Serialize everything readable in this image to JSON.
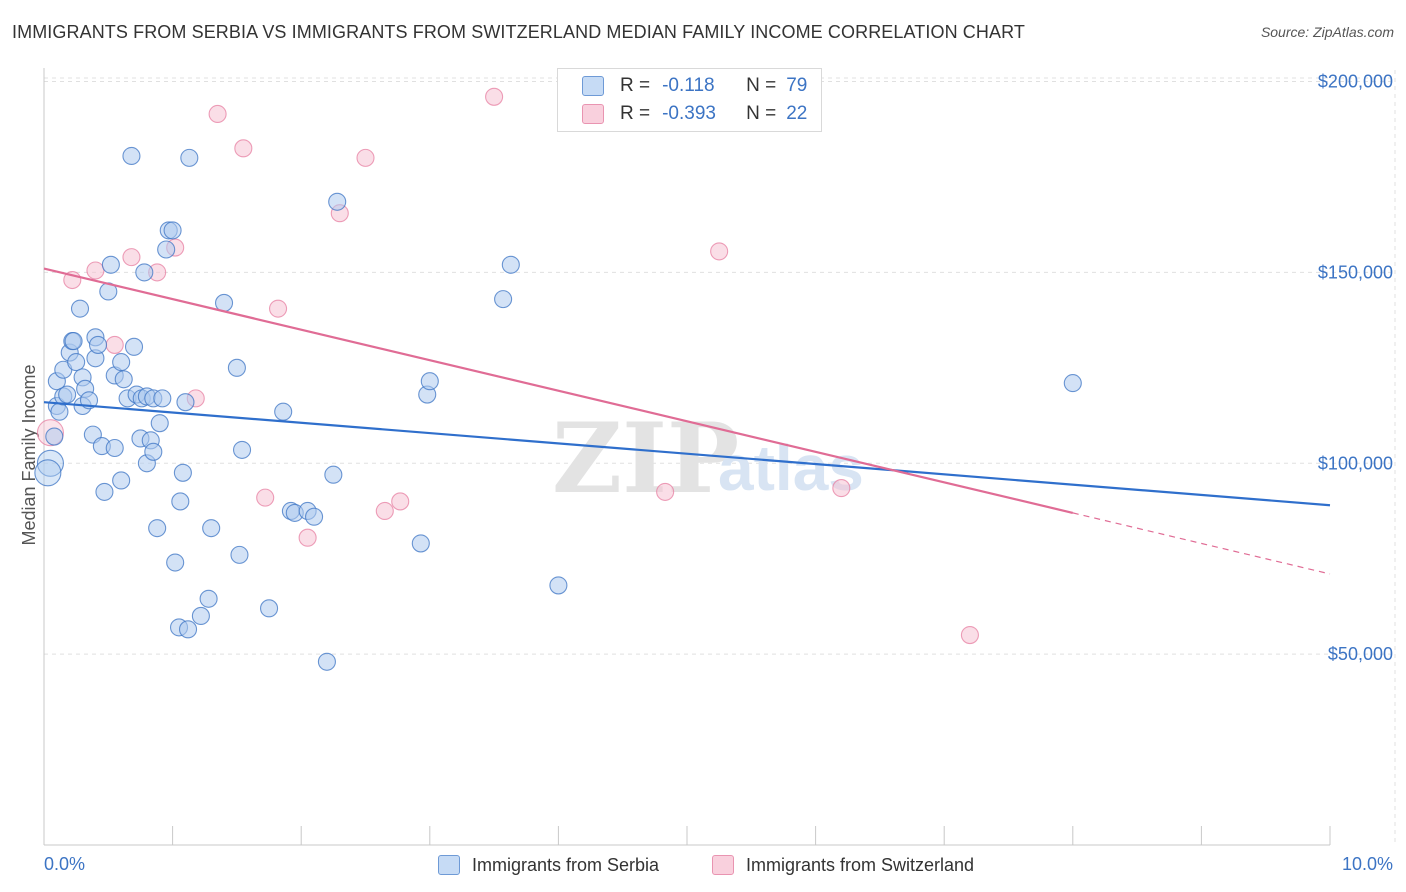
{
  "title": "IMMIGRANTS FROM SERBIA VS IMMIGRANTS FROM SWITZERLAND MEDIAN FAMILY INCOME CORRELATION CHART",
  "source": "Source: ZipAtlas.com",
  "watermark": {
    "part1": "ZIP",
    "part2": "atlas"
  },
  "legend": [
    {
      "r_label": "R =",
      "r_value": "-0.118",
      "n_label": "N =",
      "n_value": "79"
    },
    {
      "r_label": "R =",
      "r_value": "-0.393",
      "n_label": "N =",
      "n_value": "22"
    }
  ],
  "colors": {
    "serbia_fill": "#aecbef",
    "serbia_stroke": "#3c74c4",
    "serbia_line": "#2f6fcc",
    "switzerland_fill": "#f6c3d3",
    "switzerland_stroke": "#e77fa2",
    "switzerland_line": "#e06c95",
    "accent_text": "#3c74c4",
    "grid": "#e0e0e0"
  },
  "chart_data": {
    "type": "scatter",
    "title": "IMMIGRANTS FROM SERBIA VS IMMIGRANTS FROM SWITZERLAND MEDIAN FAMILY INCOME CORRELATION CHART",
    "xlabel": "",
    "ylabel": "Median Family Income",
    "xlim": [
      0,
      10
    ],
    "ylim": [
      0,
      210000
    ],
    "x_tick_labels": [
      "0.0%",
      "10.0%"
    ],
    "y_ticks": [
      {
        "value": 200000,
        "label": "$200,000"
      },
      {
        "value": 150000,
        "label": "$150,000"
      },
      {
        "value": 100000,
        "label": "$100,000"
      },
      {
        "value": 50000,
        "label": "$50,000"
      }
    ],
    "grid": true,
    "legend_position": "top-center",
    "series": [
      {
        "name": "Immigrants from Serbia",
        "r": -0.118,
        "n": 79,
        "trend": {
          "x": [
            0.0,
            10.0
          ],
          "y": [
            116000,
            89000
          ],
          "dashed_from": null
        },
        "points": [
          [
            0.05,
            100000
          ],
          [
            0.03,
            97500
          ],
          [
            0.08,
            107000
          ],
          [
            0.1,
            115000
          ],
          [
            0.12,
            113500
          ],
          [
            0.1,
            121500
          ],
          [
            0.15,
            117500
          ],
          [
            0.18,
            118000
          ],
          [
            0.15,
            124500
          ],
          [
            0.2,
            129000
          ],
          [
            0.22,
            132000
          ],
          [
            0.23,
            132000
          ],
          [
            0.25,
            126500
          ],
          [
            0.28,
            140500
          ],
          [
            0.3,
            122500
          ],
          [
            0.32,
            119500
          ],
          [
            0.3,
            115000
          ],
          [
            0.35,
            116500
          ],
          [
            0.38,
            107500
          ],
          [
            0.4,
            133000
          ],
          [
            0.4,
            127500
          ],
          [
            0.42,
            131000
          ],
          [
            0.45,
            104500
          ],
          [
            0.47,
            92500
          ],
          [
            0.5,
            145000
          ],
          [
            0.52,
            152000
          ],
          [
            0.55,
            104000
          ],
          [
            0.55,
            123000
          ],
          [
            0.6,
            126500
          ],
          [
            0.6,
            95500
          ],
          [
            0.62,
            122000
          ],
          [
            0.65,
            117000
          ],
          [
            0.68,
            180500
          ],
          [
            0.7,
            130500
          ],
          [
            0.72,
            118000
          ],
          [
            0.75,
            106500
          ],
          [
            0.76,
            117000
          ],
          [
            0.78,
            150000
          ],
          [
            0.8,
            117500
          ],
          [
            0.8,
            100000
          ],
          [
            0.83,
            106000
          ],
          [
            0.85,
            103000
          ],
          [
            0.85,
            117000
          ],
          [
            0.88,
            83000
          ],
          [
            0.9,
            110500
          ],
          [
            0.92,
            117000
          ],
          [
            0.95,
            156000
          ],
          [
            0.97,
            161000
          ],
          [
            1.0,
            161000
          ],
          [
            1.02,
            74000
          ],
          [
            1.05,
            57000
          ],
          [
            1.06,
            90000
          ],
          [
            1.08,
            97500
          ],
          [
            1.1,
            116000
          ],
          [
            1.12,
            56500
          ],
          [
            1.13,
            180000
          ],
          [
            1.22,
            60000
          ],
          [
            1.28,
            64500
          ],
          [
            1.3,
            83000
          ],
          [
            1.4,
            142000
          ],
          [
            1.5,
            125000
          ],
          [
            1.52,
            76000
          ],
          [
            1.54,
            103500
          ],
          [
            1.75,
            62000
          ],
          [
            1.86,
            113500
          ],
          [
            1.92,
            87500
          ],
          [
            1.95,
            87000
          ],
          [
            2.05,
            87500
          ],
          [
            2.1,
            86000
          ],
          [
            2.2,
            48000
          ],
          [
            2.25,
            97000
          ],
          [
            2.28,
            168500
          ],
          [
            2.93,
            79000
          ],
          [
            2.98,
            118000
          ],
          [
            3.0,
            121500
          ],
          [
            3.57,
            143000
          ],
          [
            3.63,
            152000
          ],
          [
            4.0,
            68000
          ],
          [
            8.0,
            121000
          ]
        ]
      },
      {
        "name": "Immigrants from Switzerland",
        "r": -0.393,
        "n": 22,
        "trend": {
          "x": [
            0.0,
            10.0
          ],
          "y": [
            151000,
            71000
          ],
          "dashed_from": 8.0
        },
        "points": [
          [
            0.05,
            108000
          ],
          [
            0.22,
            148000
          ],
          [
            0.4,
            150500
          ],
          [
            0.55,
            131000
          ],
          [
            0.68,
            154000
          ],
          [
            0.88,
            150000
          ],
          [
            1.02,
            156500
          ],
          [
            1.18,
            117000
          ],
          [
            1.35,
            191500
          ],
          [
            1.55,
            182500
          ],
          [
            1.72,
            91000
          ],
          [
            1.82,
            140500
          ],
          [
            2.05,
            80500
          ],
          [
            2.3,
            165500
          ],
          [
            2.5,
            180000
          ],
          [
            2.65,
            87500
          ],
          [
            2.77,
            90000
          ],
          [
            3.5,
            196000
          ],
          [
            4.83,
            92500
          ],
          [
            5.25,
            155500
          ],
          [
            6.2,
            93500
          ],
          [
            7.2,
            55000
          ]
        ]
      }
    ]
  }
}
